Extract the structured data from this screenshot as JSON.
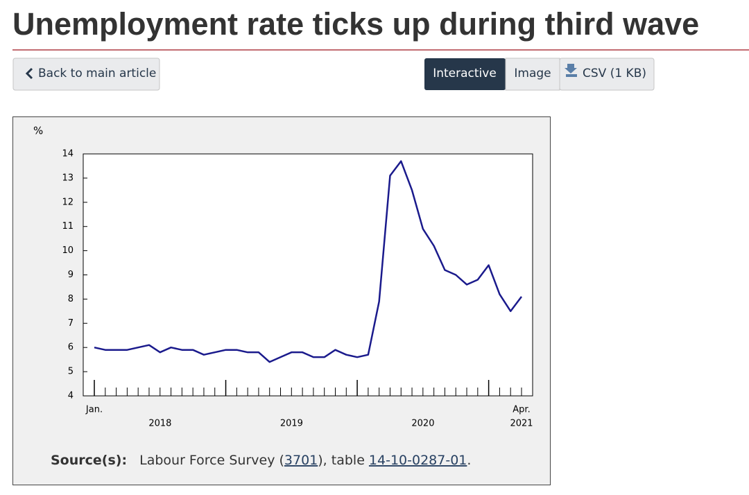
{
  "header": {
    "title": "Unemployment rate ticks up during third wave"
  },
  "buttons": {
    "back": "Back to main article",
    "interactive": "Interactive",
    "image": "Image",
    "csv": "CSV (1 KB)"
  },
  "chart_data": {
    "type": "line",
    "y_unit": "%",
    "categories": [
      "Jan.",
      null,
      null,
      null,
      null,
      null,
      null,
      null,
      null,
      null,
      null,
      null,
      null,
      null,
      null,
      null,
      null,
      null,
      null,
      null,
      null,
      null,
      null,
      null,
      null,
      null,
      null,
      null,
      null,
      null,
      null,
      null,
      null,
      null,
      null,
      null,
      null,
      null,
      null,
      "Apr."
    ],
    "years": [
      "2018",
      "2019",
      "2020",
      "2021"
    ],
    "series": [
      {
        "color": "#1a1a8c",
        "values": [
          6.0,
          5.9,
          5.9,
          5.9,
          6.0,
          6.1,
          5.8,
          6.0,
          5.9,
          5.9,
          5.7,
          5.8,
          5.9,
          5.9,
          5.8,
          5.8,
          5.4,
          5.6,
          5.8,
          5.8,
          5.6,
          5.6,
          5.9,
          5.7,
          5.6,
          5.7,
          7.9,
          13.1,
          13.7,
          12.5,
          10.9,
          10.2,
          9.2,
          9.0,
          8.6,
          8.8,
          9.4,
          8.2,
          7.5,
          8.1
        ]
      }
    ],
    "ylim": [
      4,
      14
    ],
    "yticks": [
      4,
      5,
      6,
      7,
      8,
      9,
      10,
      11,
      12,
      13,
      14
    ]
  },
  "source": {
    "label": "Source(s):",
    "text_before": "Labour Force Survey (",
    "survey_code": "3701",
    "text_middle": "), table ",
    "table_id": "14-10-0287-01",
    "text_end": "."
  }
}
